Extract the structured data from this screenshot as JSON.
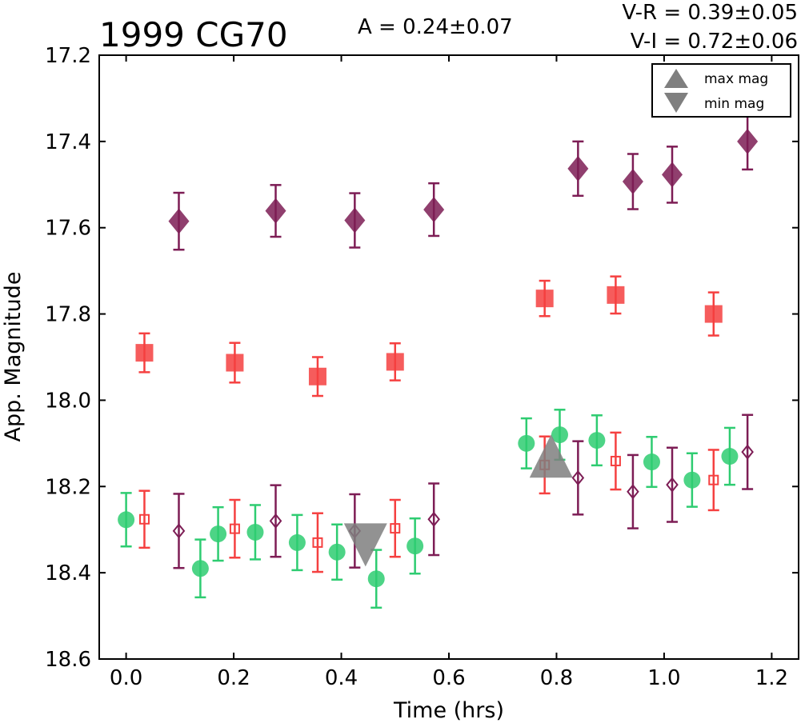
{
  "chart_data": {
    "type": "scatter",
    "title": "1999 CG70",
    "annotations": {
      "amplitude": "A  = 0.24±0.07",
      "v_r": "V-R = 0.39±0.05",
      "v_i": "V-I  = 0.72±0.06"
    },
    "xlabel": "Time (hrs)",
    "ylabel": "App. Magnitude",
    "xlim": [
      -0.05,
      1.25
    ],
    "ylim": [
      18.6,
      17.2
    ],
    "y_inverted": true,
    "x_ticks": [
      "0.0",
      "0.2",
      "0.4",
      "0.6",
      "0.8",
      "1.0",
      "1.2"
    ],
    "y_ticks": [
      "17.2",
      "17.4",
      "17.6",
      "17.8",
      "18.0",
      "18.2",
      "18.4",
      "18.6"
    ],
    "grid": false,
    "legend": {
      "position": "top-right",
      "entries": [
        {
          "label": "max mag",
          "marker": "triangle-up",
          "color": "#7f7f7f"
        },
        {
          "label": "min mag",
          "marker": "triangle-down",
          "color": "#7f7f7f"
        }
      ]
    },
    "series": [
      {
        "marker": "circle",
        "color": "#2ecc71",
        "points": [
          {
            "x": 0.0,
            "y": 18.277,
            "err": 0.062
          },
          {
            "x": 0.138,
            "y": 18.39,
            "err": 0.067
          },
          {
            "x": 0.171,
            "y": 18.31,
            "err": 0.062
          },
          {
            "x": 0.24,
            "y": 18.306,
            "err": 0.063
          },
          {
            "x": 0.318,
            "y": 18.33,
            "err": 0.064
          },
          {
            "x": 0.392,
            "y": 18.352,
            "err": 0.064
          },
          {
            "x": 0.465,
            "y": 18.414,
            "err": 0.067
          },
          {
            "x": 0.537,
            "y": 18.338,
            "err": 0.064
          },
          {
            "x": 0.744,
            "y": 18.1,
            "err": 0.058
          },
          {
            "x": 0.806,
            "y": 18.08,
            "err": 0.058
          },
          {
            "x": 0.875,
            "y": 18.093,
            "err": 0.058
          },
          {
            "x": 0.977,
            "y": 18.143,
            "err": 0.058
          },
          {
            "x": 1.052,
            "y": 18.185,
            "err": 0.062
          },
          {
            "x": 1.122,
            "y": 18.13,
            "err": 0.066
          }
        ]
      },
      {
        "marker": "square-open",
        "color": "#f54040",
        "points": [
          {
            "x": 0.034,
            "y": 18.276,
            "err": 0.066
          },
          {
            "x": 0.202,
            "y": 18.298,
            "err": 0.067
          },
          {
            "x": 0.356,
            "y": 18.33,
            "err": 0.068
          },
          {
            "x": 0.5,
            "y": 18.297,
            "err": 0.066
          },
          {
            "x": 0.778,
            "y": 18.15,
            "err": 0.066
          },
          {
            "x": 0.91,
            "y": 18.141,
            "err": 0.066
          },
          {
            "x": 1.092,
            "y": 18.185,
            "err": 0.07
          }
        ]
      },
      {
        "marker": "diamond-open",
        "color": "#7d1d55",
        "points": [
          {
            "x": 0.098,
            "y": 18.303,
            "err": 0.086
          },
          {
            "x": 0.278,
            "y": 18.28,
            "err": 0.083
          },
          {
            "x": 0.425,
            "y": 18.303,
            "err": 0.085
          },
          {
            "x": 0.572,
            "y": 18.276,
            "err": 0.083
          },
          {
            "x": 0.84,
            "y": 18.18,
            "err": 0.085
          },
          {
            "x": 0.942,
            "y": 18.212,
            "err": 0.085
          },
          {
            "x": 1.015,
            "y": 18.196,
            "err": 0.086
          },
          {
            "x": 1.155,
            "y": 18.12,
            "err": 0.086
          }
        ]
      },
      {
        "marker": "square-filled",
        "color": "#f54040",
        "points": [
          {
            "x": 0.034,
            "y": 17.89,
            "err": 0.045
          },
          {
            "x": 0.202,
            "y": 17.913,
            "err": 0.046
          },
          {
            "x": 0.356,
            "y": 17.945,
            "err": 0.045
          },
          {
            "x": 0.5,
            "y": 17.911,
            "err": 0.043
          },
          {
            "x": 0.778,
            "y": 17.764,
            "err": 0.041
          },
          {
            "x": 0.91,
            "y": 17.756,
            "err": 0.043
          },
          {
            "x": 1.092,
            "y": 17.8,
            "err": 0.05
          }
        ]
      },
      {
        "marker": "diamond-filled",
        "color": "#7d1d55",
        "points": [
          {
            "x": 0.098,
            "y": 17.585,
            "err": 0.066
          },
          {
            "x": 0.278,
            "y": 17.561,
            "err": 0.06
          },
          {
            "x": 0.425,
            "y": 17.583,
            "err": 0.063
          },
          {
            "x": 0.572,
            "y": 17.558,
            "err": 0.061
          },
          {
            "x": 0.84,
            "y": 17.463,
            "err": 0.063
          },
          {
            "x": 0.942,
            "y": 17.493,
            "err": 0.064
          },
          {
            "x": 1.015,
            "y": 17.477,
            "err": 0.065
          },
          {
            "x": 1.155,
            "y": 17.4,
            "err": 0.065
          }
        ]
      },
      {
        "marker": "triangle-down",
        "color": "#7f7f7f",
        "points": [
          {
            "x": 0.445,
            "y": 18.33
          }
        ]
      },
      {
        "marker": "triangle-up",
        "color": "#7f7f7f",
        "points": [
          {
            "x": 0.79,
            "y": 18.135
          }
        ]
      }
    ]
  }
}
